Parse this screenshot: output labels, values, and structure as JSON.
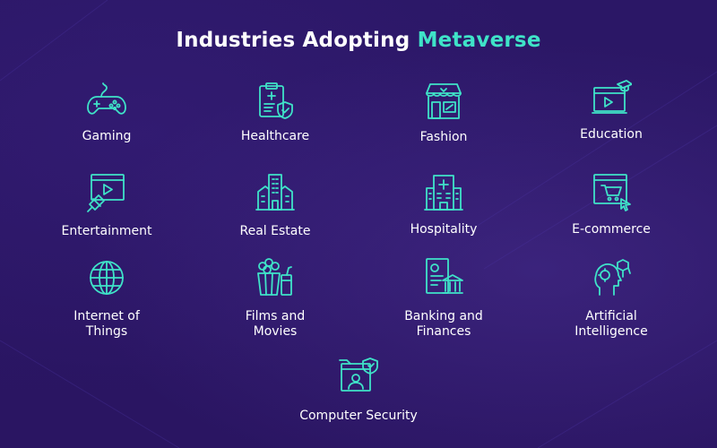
{
  "title": {
    "part1": "Industries Adopting ",
    "accent": "Metaverse"
  },
  "colors": {
    "background": "#2a1664",
    "accent": "#3fe3c8",
    "text": "#ffffff"
  },
  "industries": [
    {
      "label": "Gaming",
      "icon": "gamepad-icon"
    },
    {
      "label": "Healthcare",
      "icon": "clipboard-shield-icon"
    },
    {
      "label": "Fashion",
      "icon": "storefront-icon"
    },
    {
      "label": "Education",
      "icon": "laptop-graduation-cap-icon"
    },
    {
      "label": "Entertainment",
      "icon": "video-screen-icon"
    },
    {
      "label": "Real Estate",
      "icon": "buildings-icon"
    },
    {
      "label": "Hospitality",
      "icon": "hospital-building-icon"
    },
    {
      "label": "E-commerce",
      "icon": "shopping-cart-screen-icon"
    },
    {
      "label": "Internet of\nThings",
      "icon": "globe-icon"
    },
    {
      "label": "Films and\nMovies",
      "icon": "popcorn-icon"
    },
    {
      "label": "Banking and\nFinances",
      "icon": "bank-document-icon"
    },
    {
      "label": "Artificial\nIntelligence",
      "icon": "ai-head-icon"
    },
    {
      "label": "Computer Security",
      "icon": "secure-computer-icon"
    }
  ]
}
